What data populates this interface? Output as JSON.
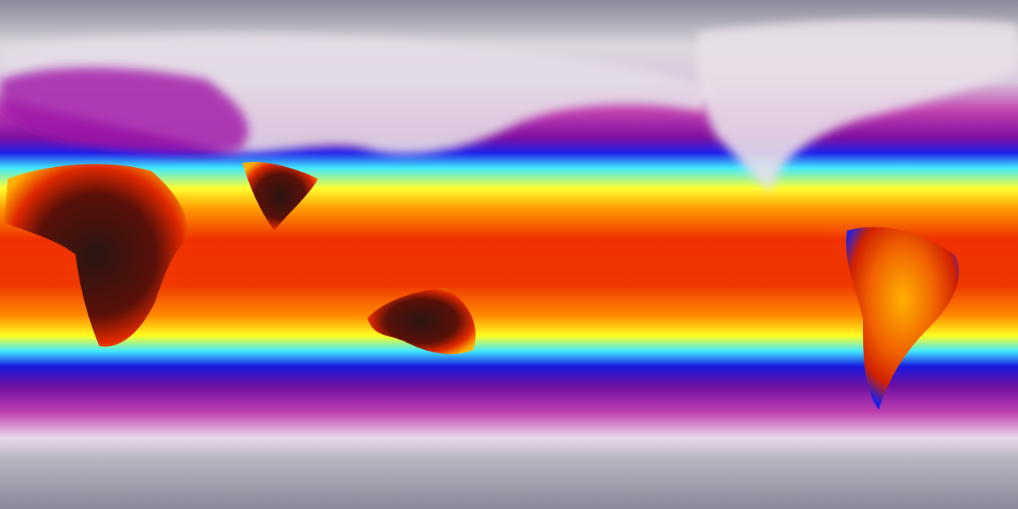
{
  "map": {
    "projection": "equirectangular",
    "type": "global surface temperature color map",
    "colors": {
      "polar": "#8c8a9a",
      "cold": "#e6dde8",
      "cool": "#b0109e",
      "mild_low": "#1c1ce0",
      "mild": "#40e8ff",
      "warm": "#ffff20",
      "hot": "#ff8000",
      "very_hot": "#f02800",
      "extreme": "#2a1512"
    }
  }
}
